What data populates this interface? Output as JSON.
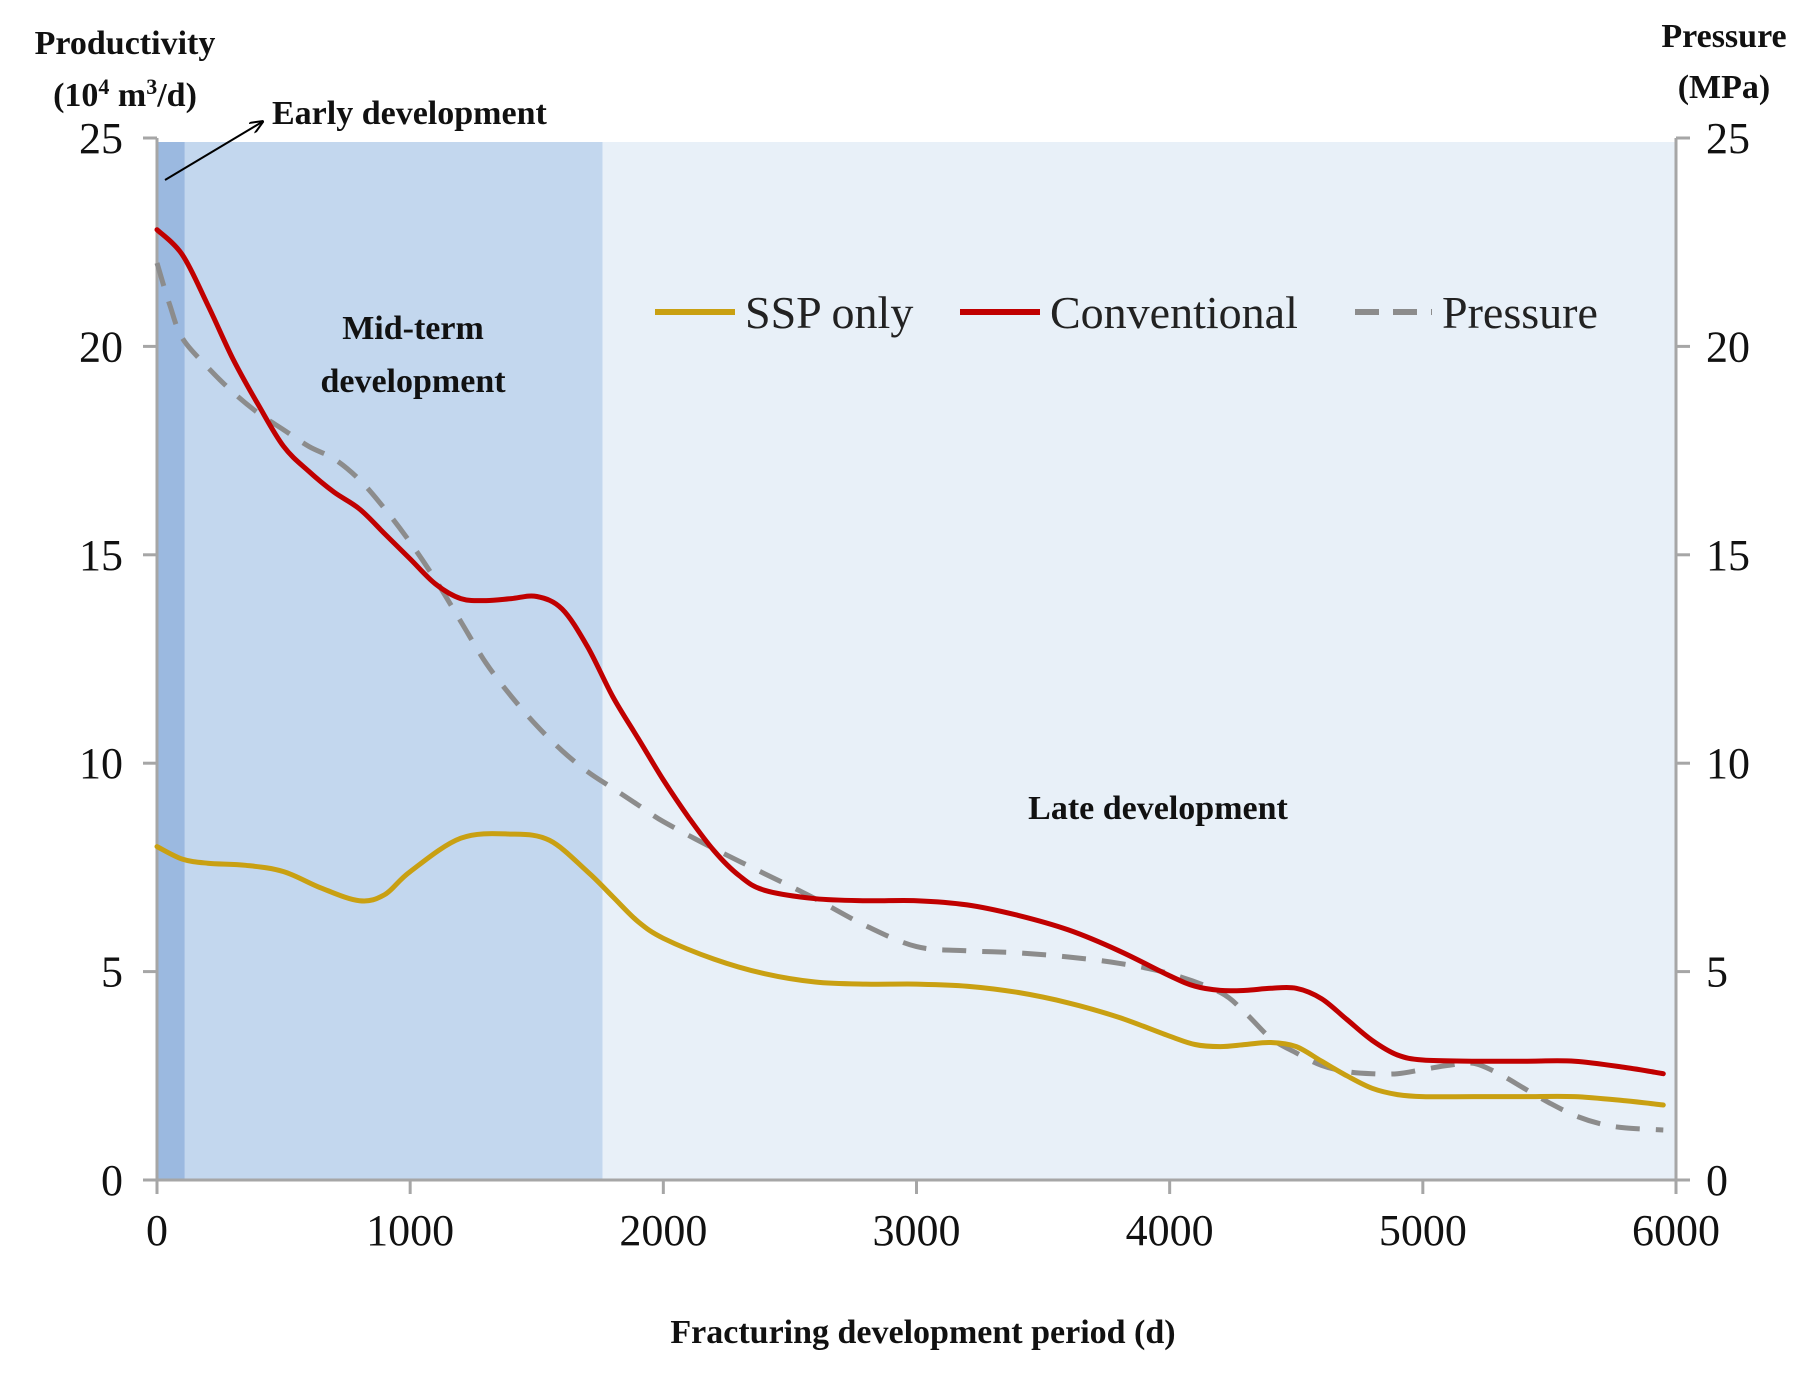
{
  "chart_data": {
    "type": "line",
    "title": "",
    "xlabel": "Fracturing development period (d)",
    "ylabel_left": {
      "line1": "Productivity",
      "line2_prefix": "(10",
      "line2_sup1": "4",
      "line2_mid": " m",
      "line2_sup2": "3",
      "line2_suffix": "/d)"
    },
    "ylabel_right": {
      "line1": "Pressure",
      "line2": "(MPa)"
    },
    "xlim": [
      0,
      6000
    ],
    "ylim_left": [
      0,
      25
    ],
    "ylim_right": [
      0,
      25
    ],
    "x_ticks": [
      0,
      1000,
      2000,
      3000,
      4000,
      5000,
      6000
    ],
    "y_ticks_left": [
      0,
      5,
      10,
      15,
      20,
      25
    ],
    "y_ticks_right": [
      0,
      5,
      10,
      15,
      20,
      25
    ],
    "legend_position": "top-right, inside plot",
    "regions": [
      {
        "name": "early",
        "x_start": 0,
        "x_end": 110,
        "color": "#9bb9e0"
      },
      {
        "name": "mid",
        "x_start": 110,
        "x_end": 1760,
        "color": "#c3d7ee"
      },
      {
        "name": "late",
        "x_start": 1760,
        "x_end": 6000,
        "color": "#e8f0f8"
      }
    ],
    "annotations": {
      "early": "Early development",
      "mid_line1": "Mid-term",
      "mid_line2": "development",
      "late": "Late development"
    },
    "series": [
      {
        "name": "SSP only",
        "axis": "left",
        "color": "#c9a012",
        "dash": "solid",
        "x": [
          0,
          100,
          200,
          350,
          500,
          650,
          800,
          900,
          1000,
          1200,
          1400,
          1550,
          1700,
          1800,
          1900,
          2000,
          2200,
          2400,
          2600,
          2800,
          3000,
          3200,
          3400,
          3600,
          3800,
          4000,
          4100,
          4200,
          4300,
          4400,
          4500,
          4600,
          4700,
          4800,
          4900,
          5000,
          5200,
          5400,
          5600,
          5800,
          5950
        ],
        "values": [
          8.0,
          7.7,
          7.6,
          7.55,
          7.4,
          7.0,
          6.7,
          6.85,
          7.4,
          8.2,
          8.3,
          8.15,
          7.4,
          6.8,
          6.2,
          5.8,
          5.3,
          4.95,
          4.75,
          4.7,
          4.7,
          4.65,
          4.5,
          4.25,
          3.9,
          3.45,
          3.25,
          3.2,
          3.25,
          3.3,
          3.2,
          2.85,
          2.5,
          2.2,
          2.05,
          2.0,
          2.0,
          2.0,
          2.0,
          1.9,
          1.8
        ]
      },
      {
        "name": "Conventional",
        "axis": "left",
        "color": "#c00000",
        "dash": "solid",
        "x": [
          0,
          100,
          200,
          300,
          400,
          500,
          600,
          700,
          800,
          900,
          1000,
          1100,
          1200,
          1300,
          1400,
          1500,
          1600,
          1700,
          1800,
          1900,
          2000,
          2100,
          2200,
          2300,
          2400,
          2600,
          2800,
          3000,
          3200,
          3400,
          3600,
          3800,
          4000,
          4100,
          4200,
          4300,
          4400,
          4500,
          4600,
          4700,
          4800,
          4900,
          5000,
          5200,
          5400,
          5600,
          5800,
          5950
        ],
        "values": [
          22.8,
          22.2,
          21.0,
          19.7,
          18.6,
          17.6,
          17.0,
          16.5,
          16.1,
          15.5,
          14.9,
          14.3,
          13.95,
          13.9,
          13.95,
          14.0,
          13.7,
          12.8,
          11.6,
          10.6,
          9.6,
          8.7,
          7.9,
          7.3,
          6.95,
          6.75,
          6.7,
          6.7,
          6.6,
          6.35,
          6.0,
          5.5,
          4.9,
          4.65,
          4.55,
          4.55,
          4.6,
          4.6,
          4.35,
          3.85,
          3.35,
          3.0,
          2.88,
          2.85,
          2.85,
          2.85,
          2.7,
          2.55
        ]
      },
      {
        "name": "Pressure",
        "axis": "right",
        "color": "#8c8c8c",
        "dash": "dashed",
        "x": [
          0,
          50,
          100,
          200,
          300,
          400,
          500,
          600,
          700,
          800,
          900,
          1000,
          1100,
          1200,
          1300,
          1400,
          1500,
          1600,
          1700,
          1800,
          1900,
          2000,
          2200,
          2400,
          2600,
          2800,
          3000,
          3200,
          3400,
          3600,
          3800,
          4000,
          4200,
          4300,
          4400,
          4500,
          4600,
          4700,
          4800,
          4900,
          5000,
          5100,
          5200,
          5300,
          5400,
          5500,
          5600,
          5700,
          5800,
          5950
        ],
        "values": [
          22.0,
          21.0,
          20.2,
          19.5,
          18.9,
          18.4,
          18.0,
          17.6,
          17.3,
          16.8,
          16.1,
          15.3,
          14.4,
          13.4,
          12.4,
          11.6,
          10.9,
          10.3,
          9.8,
          9.4,
          9.0,
          8.6,
          7.95,
          7.35,
          6.75,
          6.1,
          5.6,
          5.5,
          5.45,
          5.35,
          5.2,
          4.95,
          4.5,
          4.0,
          3.4,
          3.05,
          2.75,
          2.6,
          2.55,
          2.55,
          2.65,
          2.75,
          2.8,
          2.55,
          2.2,
          1.85,
          1.55,
          1.35,
          1.25,
          1.2
        ]
      }
    ]
  }
}
